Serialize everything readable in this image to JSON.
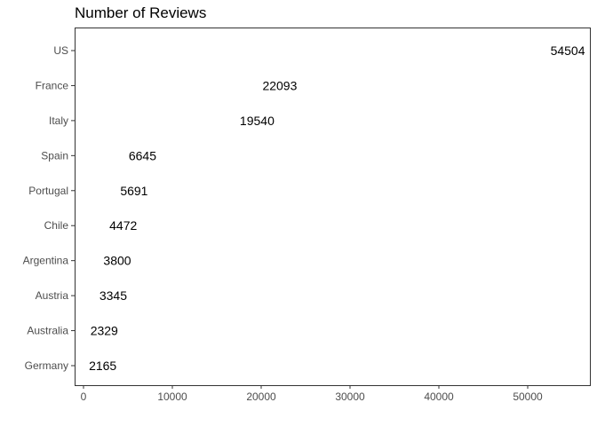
{
  "chart_data": {
    "type": "bar",
    "title": "Number of Reviews",
    "xlabel": "",
    "ylabel": "",
    "categories": [
      "US",
      "France",
      "Italy",
      "Spain",
      "Portugal",
      "Chile",
      "Argentina",
      "Austria",
      "Australia",
      "Germany"
    ],
    "values": [
      54504,
      22093,
      19540,
      6645,
      5691,
      4472,
      3800,
      3345,
      2329,
      2165
    ],
    "xlim": [
      -1000,
      57000
    ],
    "x_ticks": [
      0,
      10000,
      20000,
      30000,
      40000,
      50000
    ],
    "x_tick_labels": [
      "0",
      "10000",
      "20000",
      "30000",
      "40000",
      "50000"
    ],
    "orientation": "horizontal",
    "grid": false,
    "legend": "none"
  }
}
